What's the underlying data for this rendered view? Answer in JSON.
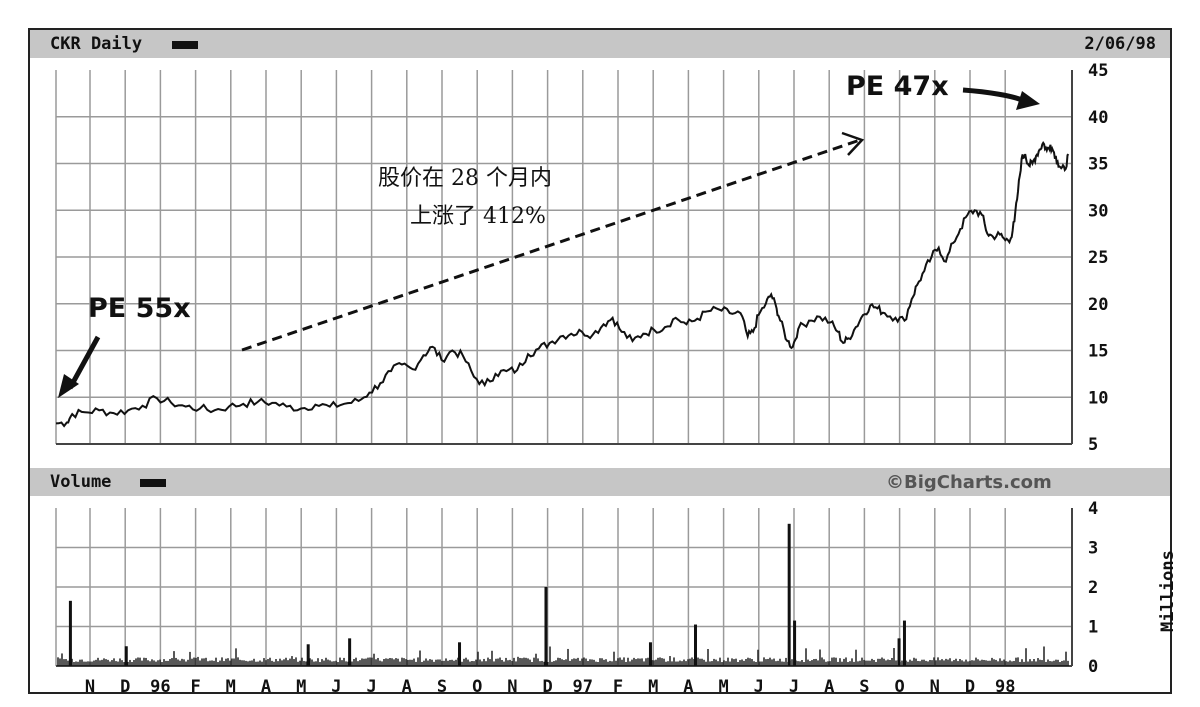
{
  "chart_data": [
    {
      "type": "line",
      "title": "CKR Daily",
      "date": "2/06/98",
      "ylim": [
        5,
        45
      ],
      "y_ticks": [
        5,
        10,
        15,
        20,
        25,
        30,
        35,
        40,
        45
      ],
      "grid": true,
      "x_month_labels": [
        "N",
        "D",
        "96",
        "F",
        "M",
        "A",
        "M",
        "J",
        "J",
        "A",
        "S",
        "O",
        "N",
        "D",
        "97",
        "F",
        "M",
        "A",
        "M",
        "J",
        "J",
        "A",
        "S",
        "O",
        "N",
        "D",
        "98"
      ],
      "x_range": [
        0,
        28.2
      ],
      "series": [
        {
          "values": [
            [
              0.0,
              7.2
            ],
            [
              0.3,
              7.3
            ],
            [
              0.45,
              8.2
            ],
            [
              0.8,
              8.4
            ],
            [
              1.2,
              8.6
            ],
            [
              1.6,
              8.3
            ],
            [
              2.0,
              8.6
            ],
            [
              2.4,
              9.1
            ],
            [
              2.8,
              9.9
            ],
            [
              3.2,
              9.4
            ],
            [
              3.6,
              9.0
            ],
            [
              4.0,
              8.8
            ],
            [
              4.4,
              8.6
            ],
            [
              4.8,
              9.0
            ],
            [
              5.2,
              9.3
            ],
            [
              5.6,
              9.5
            ],
            [
              6.0,
              9.4
            ],
            [
              6.4,
              9.0
            ],
            [
              6.8,
              8.8
            ],
            [
              7.2,
              9.2
            ],
            [
              7.6,
              9.0
            ],
            [
              8.0,
              9.3
            ],
            [
              8.4,
              9.6
            ],
            [
              8.7,
              10.5
            ],
            [
              9.0,
              11.5
            ],
            [
              9.3,
              12.8
            ],
            [
              9.6,
              13.5
            ],
            [
              9.9,
              13.0
            ],
            [
              10.2,
              14.5
            ],
            [
              10.45,
              15.4
            ],
            [
              10.7,
              14.0
            ],
            [
              11.0,
              15.0
            ],
            [
              11.3,
              14.4
            ],
            [
              11.6,
              12.2
            ],
            [
              11.9,
              11.3
            ],
            [
              12.2,
              12.5
            ],
            [
              12.5,
              12.8
            ],
            [
              12.8,
              12.9
            ],
            [
              13.1,
              14.6
            ],
            [
              13.4,
              15.2
            ],
            [
              13.7,
              15.8
            ],
            [
              14.0,
              16.5
            ],
            [
              14.3,
              16.8
            ],
            [
              14.6,
              17.0
            ],
            [
              14.9,
              16.7
            ],
            [
              15.2,
              17.8
            ],
            [
              15.45,
              18.5
            ],
            [
              15.7,
              17.0
            ],
            [
              16.0,
              16.0
            ],
            [
              16.3,
              16.8
            ],
            [
              16.6,
              17.2
            ],
            [
              16.9,
              17.5
            ],
            [
              17.2,
              18.5
            ],
            [
              17.5,
              17.8
            ],
            [
              17.8,
              18.4
            ],
            [
              18.1,
              19.2
            ],
            [
              18.4,
              19.4
            ],
            [
              18.7,
              19.0
            ],
            [
              19.0,
              19.0
            ],
            [
              19.2,
              16.5
            ],
            [
              19.35,
              17.0
            ],
            [
              19.5,
              18.8
            ],
            [
              19.7,
              20.0
            ],
            [
              19.85,
              21.0
            ],
            [
              20.0,
              19.5
            ],
            [
              20.1,
              18.2
            ],
            [
              20.3,
              16.0
            ],
            [
              20.45,
              15.4
            ],
            [
              20.6,
              17.3
            ],
            [
              20.9,
              18.2
            ],
            [
              21.2,
              18.6
            ],
            [
              21.5,
              18.0
            ],
            [
              21.7,
              17.0
            ],
            [
              21.85,
              15.8
            ],
            [
              22.0,
              16.3
            ],
            [
              22.2,
              17.5
            ],
            [
              22.4,
              18.8
            ],
            [
              22.6,
              19.8
            ],
            [
              22.8,
              19.5
            ],
            [
              23.0,
              19.0
            ],
            [
              23.3,
              18.5
            ],
            [
              23.55,
              18.2
            ],
            [
              23.75,
              20.5
            ],
            [
              23.9,
              22.0
            ],
            [
              24.1,
              23.5
            ],
            [
              24.3,
              25.0
            ],
            [
              24.5,
              26.0
            ],
            [
              24.7,
              24.5
            ],
            [
              24.9,
              26.5
            ],
            [
              25.1,
              28.0
            ],
            [
              25.3,
              29.5
            ],
            [
              25.5,
              30.0
            ],
            [
              25.7,
              29.5
            ],
            [
              25.85,
              27.5
            ],
            [
              26.0,
              27.2
            ],
            [
              26.2,
              27.4
            ],
            [
              26.35,
              26.8
            ],
            [
              26.5,
              27.0
            ],
            [
              26.6,
              28.8
            ],
            [
              26.7,
              32.0
            ],
            [
              26.8,
              35.5
            ],
            [
              26.9,
              36.0
            ],
            [
              27.0,
              34.8
            ],
            [
              27.1,
              35.0
            ],
            [
              27.2,
              35.8
            ],
            [
              27.3,
              36.5
            ],
            [
              27.4,
              37.2
            ],
            [
              27.5,
              36.4
            ],
            [
              27.6,
              37.0
            ],
            [
              27.7,
              36.2
            ],
            [
              27.8,
              35.2
            ],
            [
              27.9,
              34.5
            ],
            [
              28.0,
              34.3
            ],
            [
              28.1,
              36.0
            ]
          ]
        }
      ]
    },
    {
      "type": "bar",
      "title": "Volume",
      "ylabel": "Millions",
      "ylim": [
        0,
        4
      ],
      "y_ticks": [
        0,
        1,
        2,
        3,
        4
      ],
      "grid": true,
      "spikes": [
        {
          "x": 0.4,
          "value": 1.65
        },
        {
          "x": 1.95,
          "value": 0.5
        },
        {
          "x": 7.0,
          "value": 0.55
        },
        {
          "x": 8.15,
          "value": 0.7
        },
        {
          "x": 11.2,
          "value": 0.6
        },
        {
          "x": 13.6,
          "value": 2.0
        },
        {
          "x": 16.5,
          "value": 0.6
        },
        {
          "x": 17.75,
          "value": 1.05
        },
        {
          "x": 20.35,
          "value": 3.6
        },
        {
          "x": 20.5,
          "value": 1.15
        },
        {
          "x": 23.4,
          "value": 0.7
        },
        {
          "x": 23.55,
          "value": 1.15
        }
      ],
      "baseline_level": 0.1
    }
  ],
  "header": {
    "title": "CKR Daily",
    "date": "2/06/98"
  },
  "volume_header": {
    "title": "Volume",
    "brand": "©BigCharts.com",
    "units": "Millions"
  },
  "annotations": {
    "pe_start": "PE 55x",
    "pe_end": "PE 47x",
    "rise_line1": "股价在 28 个月内",
    "rise_line2": "上涨了 412%"
  },
  "colors": {
    "header_bar": "#c6c6c6",
    "grid": "#9a9a9a",
    "line": "#111111"
  }
}
